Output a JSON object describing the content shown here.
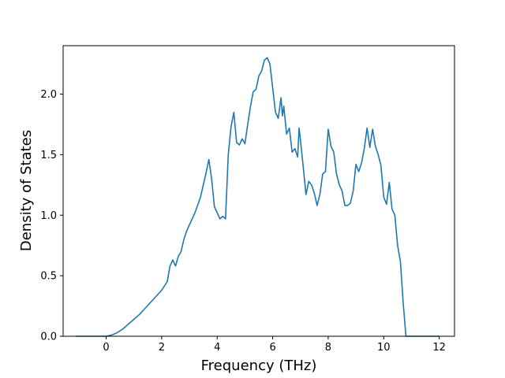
{
  "chart_data": {
    "type": "line",
    "title": "",
    "xlabel": "Frequency (THz)",
    "ylabel": "Density of States",
    "xlim": [
      -1.55,
      12.55
    ],
    "ylim": [
      0.0,
      2.4
    ],
    "xticks": [
      0,
      2,
      4,
      6,
      8,
      10,
      12
    ],
    "yticks": [
      0.0,
      0.5,
      1.0,
      1.5,
      2.0
    ],
    "xtick_labels": [
      "0",
      "2",
      "4",
      "6",
      "8",
      "10",
      "12"
    ],
    "ytick_labels": [
      "0.0",
      "0.5",
      "1.0",
      "1.5",
      "2.0"
    ],
    "grid": false,
    "legend": "none",
    "colors": {
      "line": "#1f77b4"
    },
    "series": [
      {
        "x": [
          -1.1,
          -0.5,
          0.0,
          0.2,
          0.4,
          0.6,
          0.8,
          1.0,
          1.2,
          1.4,
          1.6,
          1.8,
          2.0,
          2.2,
          2.3,
          2.4,
          2.5,
          2.6,
          2.7,
          2.8,
          2.9,
          3.0,
          3.2,
          3.4,
          3.6,
          3.7,
          3.8,
          3.9,
          4.0,
          4.1,
          4.2,
          4.3,
          4.4,
          4.5,
          4.6,
          4.7,
          4.8,
          4.9,
          5.0,
          5.1,
          5.2,
          5.3,
          5.4,
          5.5,
          5.6,
          5.7,
          5.8,
          5.9,
          6.0,
          6.1,
          6.2,
          6.3,
          6.35,
          6.4,
          6.5,
          6.6,
          6.7,
          6.8,
          6.9,
          6.95,
          7.0,
          7.1,
          7.2,
          7.3,
          7.4,
          7.5,
          7.6,
          7.7,
          7.8,
          7.9,
          8.0,
          8.1,
          8.2,
          8.3,
          8.4,
          8.5,
          8.6,
          8.7,
          8.8,
          8.9,
          9.0,
          9.1,
          9.2,
          9.3,
          9.4,
          9.5,
          9.6,
          9.7,
          9.8,
          9.9,
          10.0,
          10.1,
          10.2,
          10.3,
          10.4,
          10.5,
          10.6,
          10.7,
          10.8,
          10.9,
          11.0,
          12.0
        ],
        "y": [
          0.0,
          0.0,
          0.0,
          0.01,
          0.03,
          0.06,
          0.1,
          0.14,
          0.18,
          0.23,
          0.28,
          0.33,
          0.38,
          0.45,
          0.58,
          0.63,
          0.58,
          0.66,
          0.7,
          0.8,
          0.87,
          0.92,
          1.02,
          1.15,
          1.35,
          1.46,
          1.3,
          1.07,
          1.02,
          0.97,
          0.99,
          0.97,
          1.5,
          1.73,
          1.85,
          1.6,
          1.58,
          1.63,
          1.59,
          1.75,
          1.9,
          2.02,
          2.04,
          2.15,
          2.19,
          2.28,
          2.3,
          2.25,
          2.05,
          1.85,
          1.8,
          1.97,
          1.82,
          1.9,
          1.67,
          1.72,
          1.52,
          1.55,
          1.48,
          1.72,
          1.62,
          1.4,
          1.17,
          1.28,
          1.25,
          1.18,
          1.08,
          1.17,
          1.34,
          1.36,
          1.71,
          1.57,
          1.52,
          1.34,
          1.25,
          1.2,
          1.08,
          1.08,
          1.1,
          1.2,
          1.42,
          1.36,
          1.43,
          1.55,
          1.72,
          1.56,
          1.71,
          1.57,
          1.5,
          1.41,
          1.15,
          1.09,
          1.27,
          1.05,
          1.0,
          0.75,
          0.62,
          0.28,
          0.0,
          0.0,
          0.0,
          0.0
        ]
      }
    ]
  }
}
